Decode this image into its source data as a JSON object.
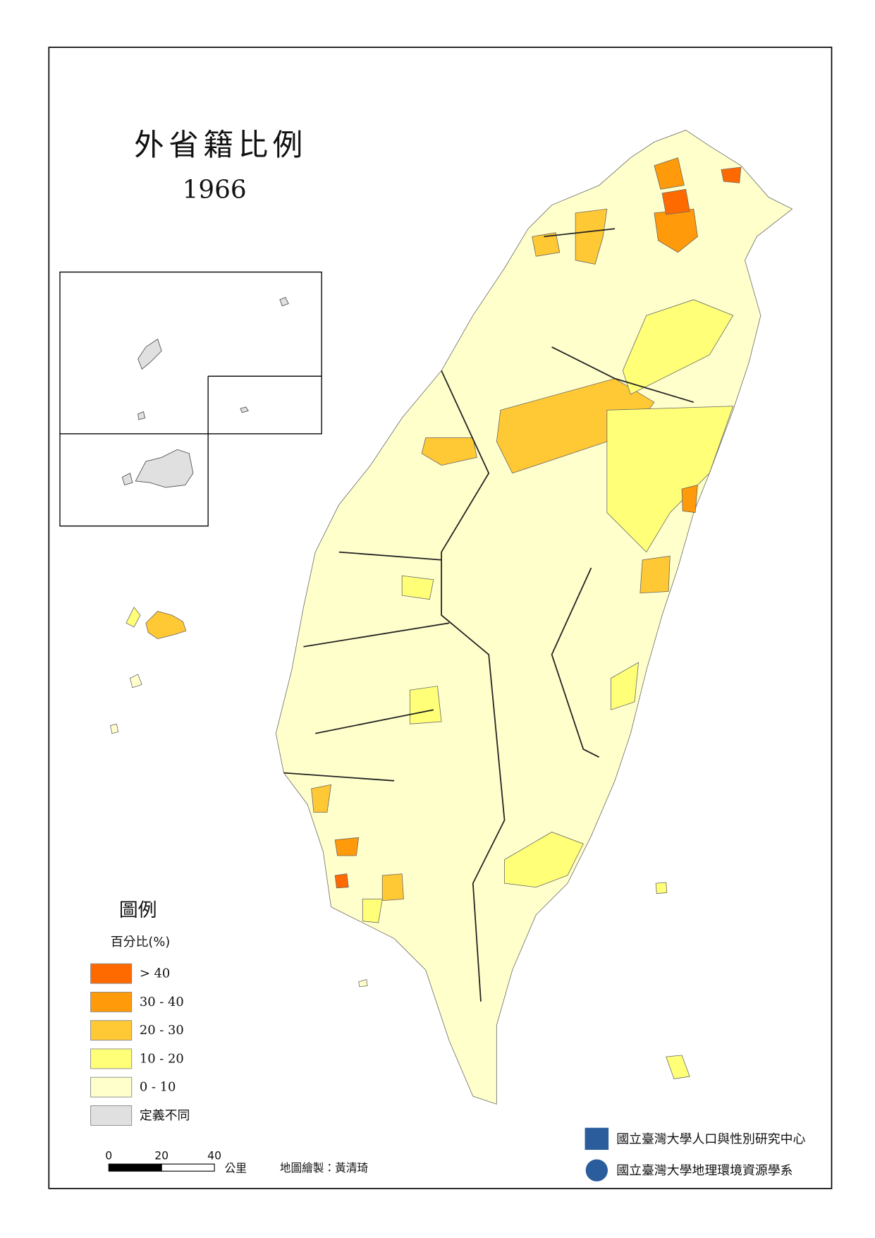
{
  "title": "外省籍比例",
  "year": "1966",
  "legend": {
    "title": "圖例",
    "unit": "百分比(%)",
    "items": [
      {
        "label": "> 40",
        "color": "#ff6a00"
      },
      {
        "label": "30 - 40",
        "color": "#ff9a0a"
      },
      {
        "label": "20 - 30",
        "color": "#ffc835"
      },
      {
        "label": "10 - 20",
        "color": "#ffff78"
      },
      {
        "label": "0 - 10",
        "color": "#ffffcc"
      },
      {
        "label": "定義不同",
        "color": "#e0e0e0"
      }
    ]
  },
  "scale_bar": {
    "ticks": [
      0,
      20,
      40
    ],
    "unit": "公里"
  },
  "credit": "地圖繪製：黃清琦",
  "institutions": [
    "國立臺灣大學人口與性別研究中心",
    "國立臺灣大學地理環境資源學系"
  ]
}
